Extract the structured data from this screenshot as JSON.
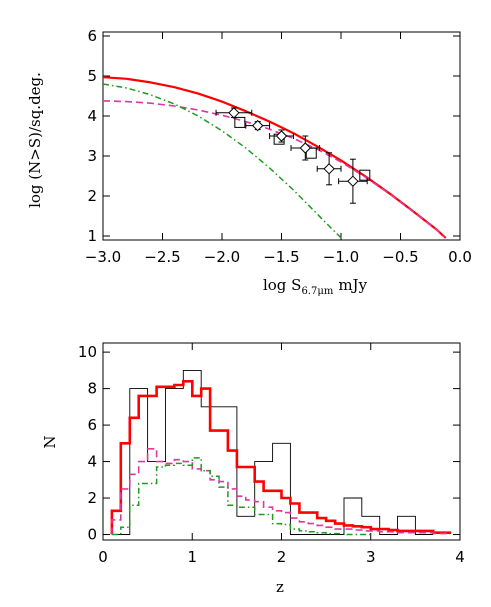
{
  "colors": {
    "model_total": "#ff0000",
    "model_dashed": "#e0379f",
    "model_dashdot": "#1f9a1f",
    "observed": "#000000",
    "data_points": "#000000"
  },
  "chart_data": [
    {
      "type": "line",
      "xlabel_main": "log S",
      "xlabel_sub": "6.7μm",
      "xlabel_unit": "mJy",
      "ylabel": "log (N>S)/sq.deg.",
      "xlim": [
        -3.0,
        0.0
      ],
      "ylim": [
        0.9,
        6.1
      ],
      "x_ticks": [
        "−3.0",
        "−2.5",
        "−2.0",
        "−1.5",
        "−1.0",
        "−0.5",
        "0.0"
      ],
      "x_tick_values": [
        -3.0,
        -2.5,
        -2.0,
        -1.5,
        -1.0,
        -0.5,
        0.0
      ],
      "y_ticks": [
        "1",
        "2",
        "3",
        "4",
        "5",
        "6"
      ],
      "y_tick_values": [
        1,
        2,
        3,
        4,
        5,
        6
      ],
      "series": [
        {
          "style": "solid-red",
          "x": [
            -3.0,
            -2.8,
            -2.6,
            -2.4,
            -2.2,
            -2.0,
            -1.8,
            -1.6,
            -1.4,
            -1.2,
            -1.0,
            -0.8,
            -0.6,
            -0.4,
            -0.2,
            -0.12
          ],
          "y": [
            4.97,
            4.93,
            4.84,
            4.72,
            4.56,
            4.36,
            4.12,
            3.86,
            3.57,
            3.24,
            2.89,
            2.5,
            2.08,
            1.63,
            1.17,
            0.95
          ]
        },
        {
          "style": "dashed-magenta",
          "x": [
            -3.0,
            -2.8,
            -2.6,
            -2.4,
            -2.2,
            -2.0,
            -1.8,
            -1.6,
            -1.4,
            -1.2,
            -1.0,
            -0.8,
            -0.6,
            -0.4,
            -0.2,
            -0.13
          ],
          "y": [
            4.38,
            4.36,
            4.32,
            4.25,
            4.15,
            4.02,
            3.86,
            3.67,
            3.44,
            3.17,
            2.85,
            2.48,
            2.07,
            1.62,
            1.17,
            0.97
          ]
        },
        {
          "style": "dashdot-green",
          "x": [
            -3.0,
            -2.8,
            -2.6,
            -2.4,
            -2.2,
            -2.0,
            -1.8,
            -1.6,
            -1.4,
            -1.2,
            -1.05,
            -0.98
          ],
          "y": [
            4.8,
            4.7,
            4.53,
            4.3,
            4.0,
            3.63,
            3.2,
            2.7,
            2.15,
            1.55,
            1.1,
            0.9
          ]
        }
      ],
      "diamond_points": [
        {
          "x": -1.9,
          "y": 4.08,
          "xerr": 0.15,
          "yerr": 0.12
        },
        {
          "x": -1.7,
          "y": 3.76,
          "xerr": 0.1,
          "yerr": 0.1
        },
        {
          "x": -1.5,
          "y": 3.5,
          "xerr": 0.1,
          "yerr": 0.15
        },
        {
          "x": -1.3,
          "y": 3.2,
          "xerr": 0.12,
          "yerr": 0.3
        },
        {
          "x": -1.1,
          "y": 2.68,
          "xerr": 0.1,
          "yerr": 0.4
        },
        {
          "x": -0.9,
          "y": 2.37,
          "xerr": 0.12,
          "yerr": 0.55
        }
      ],
      "square_points": [
        {
          "x": -1.85,
          "y": 3.84
        },
        {
          "x": -1.52,
          "y": 3.42
        },
        {
          "x": -1.25,
          "y": 3.07
        },
        {
          "x": -0.8,
          "y": 2.52
        }
      ]
    },
    {
      "type": "step",
      "xlabel": "z",
      "ylabel": "N",
      "xlim": [
        0,
        4
      ],
      "ylim": [
        -0.3,
        10.5
      ],
      "x_ticks": [
        "0",
        "1",
        "2",
        "3",
        "4"
      ],
      "x_tick_values": [
        0,
        1,
        2,
        3,
        4
      ],
      "y_ticks": [
        "0",
        "2",
        "4",
        "6",
        "8",
        "10"
      ],
      "y_tick_values": [
        0,
        2,
        4,
        6,
        8,
        10
      ],
      "series": [
        {
          "style": "thin-black",
          "edges": [
            0.1,
            0.3,
            0.5,
            0.7,
            0.9,
            1.1,
            1.3,
            1.5,
            1.7,
            1.9,
            2.1,
            2.3,
            2.5,
            2.7,
            2.9,
            3.1,
            3.3,
            3.5,
            3.7
          ],
          "values": [
            0,
            8,
            4,
            8,
            9,
            7,
            7,
            1,
            4,
            5,
            0,
            0,
            0,
            2,
            1,
            0,
            1,
            0
          ]
        },
        {
          "style": "thick-red",
          "edges": [
            0.1,
            0.2,
            0.3,
            0.4,
            0.5,
            0.6,
            0.7,
            0.8,
            0.9,
            1.0,
            1.1,
            1.2,
            1.3,
            1.4,
            1.5,
            1.6,
            1.7,
            1.8,
            1.9,
            2.0,
            2.1,
            2.2,
            2.3,
            2.4,
            2.5,
            2.6,
            2.7,
            2.8,
            2.9,
            3.0,
            3.1,
            3.2,
            3.3,
            3.4,
            3.5,
            3.6,
            3.7,
            3.8,
            3.9
          ],
          "values": [
            1.3,
            5.0,
            6.4,
            7.6,
            7.6,
            8.1,
            8.1,
            8.2,
            8.4,
            7.6,
            8.0,
            5.7,
            5.7,
            4.6,
            3.7,
            3.7,
            2.9,
            2.4,
            2.4,
            2.0,
            1.7,
            1.2,
            1.2,
            0.9,
            0.75,
            0.6,
            0.5,
            0.45,
            0.4,
            0.3,
            0.3,
            0.25,
            0.2,
            0.2,
            0.2,
            0.2,
            0.1,
            0.1
          ]
        },
        {
          "style": "dashed-magenta",
          "edges": [
            0.1,
            0.2,
            0.3,
            0.4,
            0.5,
            0.6,
            0.7,
            0.8,
            0.9,
            1.0,
            1.1,
            1.2,
            1.3,
            1.4,
            1.5,
            1.6,
            1.7,
            1.8,
            1.9,
            2.0,
            2.1,
            2.2,
            2.3,
            2.4,
            2.5,
            2.6,
            2.7,
            2.8,
            2.9,
            3.0,
            3.1,
            3.2,
            3.3,
            3.4,
            3.5,
            3.6,
            3.7,
            3.8,
            3.9
          ],
          "values": [
            0.8,
            2.5,
            3.3,
            4.0,
            4.7,
            4.0,
            3.9,
            4.1,
            4.0,
            3.6,
            3.5,
            3.0,
            2.9,
            2.5,
            2.1,
            1.9,
            1.8,
            1.5,
            1.3,
            1.2,
            0.9,
            0.7,
            0.6,
            0.5,
            0.4,
            0.3,
            0.3,
            0.25,
            0.2,
            0.2,
            0.15,
            0.15,
            0.1,
            0.1,
            0.1,
            0.1,
            0.05,
            0.05
          ]
        },
        {
          "style": "dashdot-green",
          "edges": [
            0.1,
            0.2,
            0.3,
            0.4,
            0.5,
            0.6,
            0.7,
            0.8,
            0.9,
            1.0,
            1.1,
            1.2,
            1.3,
            1.4,
            1.5,
            1.6,
            1.7,
            1.8,
            1.9,
            2.0,
            2.1,
            2.2,
            2.3,
            2.4,
            2.5,
            2.6,
            2.7,
            2.8,
            2.9,
            3.0
          ],
          "values": [
            0.0,
            0.4,
            1.6,
            2.8,
            2.8,
            3.7,
            3.8,
            3.9,
            3.8,
            4.2,
            3.5,
            3.2,
            2.6,
            1.6,
            1.5,
            1.5,
            1.1,
            1.1,
            0.6,
            0.55,
            0.3,
            0.2,
            0.15,
            0.1,
            0.05,
            0.05,
            0,
            0,
            0
          ]
        }
      ]
    }
  ]
}
